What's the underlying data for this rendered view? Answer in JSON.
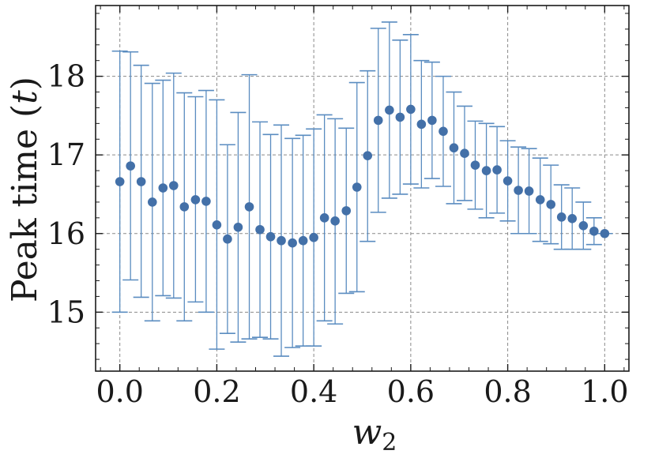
{
  "chart_data": {
    "type": "scatter",
    "xlabel": "w",
    "xlabel_subscript": "2",
    "ylabel": "Peak time (",
    "ylabel_var": "t",
    "ylabel_close": ")",
    "xlim": [
      -0.05,
      1.05
    ],
    "ylim": [
      14.25,
      18.9
    ],
    "x_ticks": [
      0.0,
      0.2,
      0.4,
      0.6,
      0.8,
      1.0
    ],
    "x_tick_labels": [
      "0.0",
      "0.2",
      "0.4",
      "0.6",
      "0.8",
      "1.0"
    ],
    "y_ticks": [
      15,
      16,
      17,
      18
    ],
    "y_tick_labels": [
      "15",
      "16",
      "17",
      "18"
    ],
    "grid": true,
    "colors": {
      "marker": "#4370a8",
      "errorbar": "#5a8cc0",
      "grid": "#8a8a8a",
      "axis": "#1a1a1a"
    },
    "series": [
      {
        "x": [
          0.0,
          0.022,
          0.044,
          0.067,
          0.089,
          0.111,
          0.133,
          0.156,
          0.178,
          0.2,
          0.222,
          0.244,
          0.267,
          0.289,
          0.311,
          0.333,
          0.356,
          0.378,
          0.4,
          0.422,
          0.444,
          0.467,
          0.489,
          0.511,
          0.533,
          0.556,
          0.578,
          0.6,
          0.622,
          0.644,
          0.667,
          0.689,
          0.711,
          0.733,
          0.756,
          0.778,
          0.8,
          0.822,
          0.844,
          0.867,
          0.889,
          0.911,
          0.933,
          0.956,
          0.978,
          1.0
        ],
        "y": [
          16.66,
          16.86,
          16.66,
          16.4,
          16.58,
          16.61,
          16.34,
          16.43,
          16.41,
          16.11,
          15.93,
          16.08,
          16.34,
          16.05,
          15.96,
          15.91,
          15.88,
          15.91,
          15.95,
          16.2,
          16.16,
          16.29,
          16.59,
          16.99,
          17.44,
          17.57,
          17.48,
          17.58,
          17.39,
          17.44,
          17.3,
          17.09,
          17.02,
          16.87,
          16.8,
          16.81,
          16.67,
          16.55,
          16.54,
          16.43,
          16.37,
          16.21,
          16.19,
          16.1,
          16.03,
          16.0
        ],
        "y_low": [
          15.0,
          15.41,
          15.19,
          14.89,
          15.21,
          15.18,
          14.89,
          15.13,
          15.0,
          14.53,
          14.73,
          14.62,
          14.66,
          14.68,
          14.66,
          14.44,
          14.55,
          14.57,
          14.57,
          14.89,
          14.85,
          15.24,
          15.26,
          15.9,
          16.27,
          16.45,
          16.5,
          16.63,
          16.58,
          16.7,
          16.6,
          16.38,
          16.42,
          16.31,
          16.2,
          16.26,
          16.16,
          16.0,
          16.0,
          15.9,
          15.87,
          15.8,
          15.8,
          15.8,
          15.86,
          16.0
        ],
        "y_high": [
          18.32,
          18.31,
          18.14,
          17.91,
          17.95,
          18.04,
          17.79,
          17.74,
          17.82,
          17.7,
          17.13,
          17.54,
          18.02,
          17.42,
          17.26,
          17.38,
          17.21,
          17.25,
          17.33,
          17.51,
          17.46,
          17.34,
          17.92,
          18.07,
          18.61,
          18.69,
          18.46,
          18.53,
          18.2,
          18.18,
          18.0,
          17.8,
          17.62,
          17.43,
          17.4,
          17.36,
          17.18,
          17.1,
          17.08,
          16.96,
          16.87,
          16.62,
          16.58,
          16.4,
          16.2,
          16.0
        ]
      }
    ]
  }
}
